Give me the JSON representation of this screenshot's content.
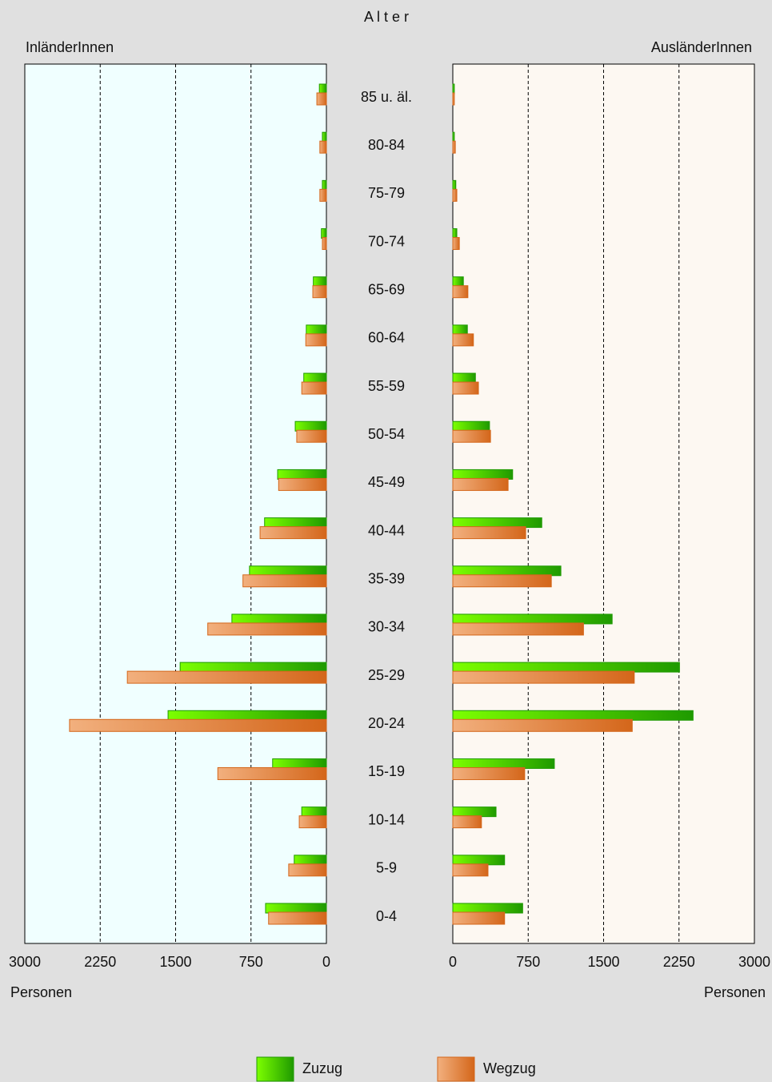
{
  "title": "A l t e r",
  "categories": [
    "85 u. äl.",
    "80-84",
    "75-79",
    "70-74",
    "65-69",
    "60-64",
    "55-59",
    "50-54",
    "45-49",
    "40-44",
    "35-39",
    "30-34",
    "25-29",
    "20-24",
    "15-19",
    "10-14",
    "5-9",
    "0-4"
  ],
  "chart_data": [
    {
      "type": "bar",
      "orientation": "horizontal",
      "title": "InländerInnen",
      "xlabel": "Personen",
      "background": "#f0ffff",
      "xlim": [
        3000,
        0
      ],
      "xticks": [
        3000,
        2250,
        1500,
        750,
        0
      ],
      "grid": true,
      "series": [
        {
          "name": "Zuzug",
          "color": "#1f9a00",
          "values": [
            70,
            40,
            40,
            50,
            130,
            200,
            225,
            310,
            485,
            615,
            765,
            940,
            1455,
            1575,
            535,
            245,
            320,
            605
          ]
        },
        {
          "name": "Wegzug",
          "color": "#d4661a",
          "values": [
            95,
            65,
            65,
            40,
            135,
            205,
            245,
            295,
            475,
            660,
            830,
            1180,
            1980,
            2555,
            1080,
            270,
            375,
            575
          ]
        }
      ]
    },
    {
      "type": "bar",
      "orientation": "horizontal",
      "title": "AusländerInnen",
      "xlabel": "Personen",
      "background": "#fdf8f2",
      "xlim": [
        0,
        3000
      ],
      "xticks": [
        0,
        750,
        1500,
        2250,
        3000
      ],
      "grid": true,
      "series": [
        {
          "color": "#1f9a00",
          "values": [
            15,
            15,
            30,
            40,
            105,
            145,
            225,
            365,
            595,
            885,
            1075,
            1585,
            2255,
            2390,
            1010,
            430,
            515,
            695
          ]
        },
        {
          "color": "#d4661a",
          "values": [
            15,
            25,
            40,
            65,
            150,
            205,
            255,
            375,
            550,
            725,
            980,
            1300,
            1805,
            1785,
            715,
            285,
            350,
            515
          ]
        }
      ]
    }
  ]
}
